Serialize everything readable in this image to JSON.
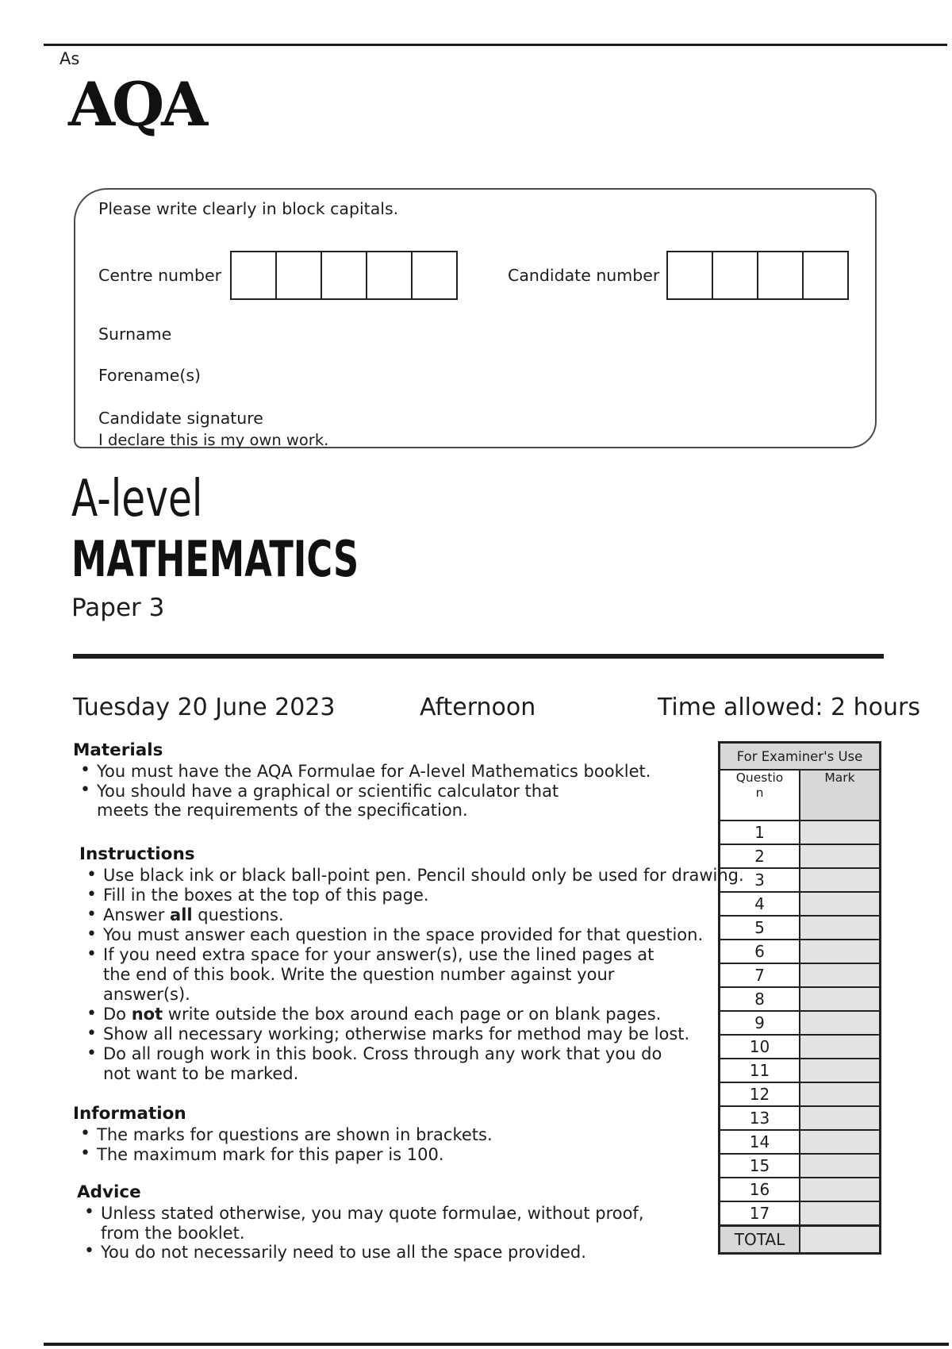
{
  "page": {
    "corner_mark": "As",
    "logo": "AQA"
  },
  "candidate_box": {
    "instruction": "Please write clearly in block capitals.",
    "centre_number_label": "Centre number",
    "candidate_number_label": "Candidate number",
    "centre_cells": [
      "",
      "",
      "",
      "",
      ""
    ],
    "candidate_cells": [
      "",
      "",
      "",
      ""
    ],
    "surname_label": "Surname",
    "forename_label": "Forename(s)",
    "signature_label": "Candidate signature",
    "declaration": "I declare this is my own work."
  },
  "title": {
    "level": "A-level",
    "subject": "MATHEMATICS",
    "paper": "Paper 3"
  },
  "session": {
    "date": "Tuesday 20 June 2023",
    "time_of_day": "Afternoon",
    "time_allowed": "Time allowed: 2 hours"
  },
  "materials": {
    "heading": "Materials",
    "b1": "You must have the AQA Formulae for A-level Mathematics booklet.",
    "b2": "You should have a graphical or scientific calculator that\nmeets the requirements of the specification."
  },
  "instructions": {
    "heading": "Instructions",
    "b1": "Use black ink or black ball-point pen.  Pencil should only be used for drawing.",
    "b2": "Fill in the boxes at the top of this page.",
    "b3_pre": "Answer ",
    "b3_bold": "all",
    "b3_post": " questions.",
    "b4": "You must answer each question in the space provided for that question.",
    "b5": "If you need extra space for your answer(s), use the lined pages at\nthe end of this book.  Write the question number against your\nanswer(s).",
    "b6_pre": "Do ",
    "b6_bold": "not",
    "b6_post": " write outside the box around each page or on blank pages.",
    "b7": "Show all necessary working; otherwise marks for method may be lost.",
    "b8": "Do all rough work in this book.  Cross through any work that you do\nnot want to be marked."
  },
  "information": {
    "heading": "Information",
    "b1": "The marks for questions are shown in brackets.",
    "b2": "The maximum mark for this paper is 100."
  },
  "advice": {
    "heading": "Advice",
    "b1": "Unless stated otherwise, you may quote formulae, without proof,\nfrom the booklet.",
    "b2": "You do not necessarily need to use all the space provided."
  },
  "examiner_table": {
    "title": "For Examiner's Use",
    "question_header": "Questio\nn",
    "mark_header": "Mark",
    "rows": [
      "1",
      "2",
      "3",
      "4",
      "5",
      "6",
      "7",
      "8",
      "9",
      "10",
      "11",
      "12",
      "13",
      "14",
      "15",
      "16",
      "17"
    ],
    "total_label": "TOTAL"
  }
}
